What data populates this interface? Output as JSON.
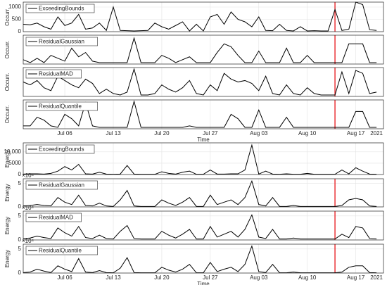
{
  "chart_data": [
    {
      "type": "line",
      "xlabel": "Time",
      "year_label": "2021",
      "color": "#000000",
      "vline_x": "2021-08-14",
      "vline_color": "#e8262a",
      "x": [
        "2021-06-30",
        "2021-07-01",
        "2021-07-02",
        "2021-07-03",
        "2021-07-04",
        "2021-07-05",
        "2021-07-06",
        "2021-07-07",
        "2021-07-08",
        "2021-07-09",
        "2021-07-10",
        "2021-07-11",
        "2021-07-12",
        "2021-07-13",
        "2021-07-14",
        "2021-07-15",
        "2021-07-16",
        "2021-07-17",
        "2021-07-18",
        "2021-07-19",
        "2021-07-20",
        "2021-07-21",
        "2021-07-22",
        "2021-07-23",
        "2021-07-24",
        "2021-07-25",
        "2021-07-26",
        "2021-07-27",
        "2021-07-28",
        "2021-07-29",
        "2021-07-30",
        "2021-07-31",
        "2021-08-01",
        "2021-08-02",
        "2021-08-03",
        "2021-08-04",
        "2021-08-05",
        "2021-08-06",
        "2021-08-07",
        "2021-08-08",
        "2021-08-09",
        "2021-08-10",
        "2021-08-11",
        "2021-08-12",
        "2021-08-13",
        "2021-08-14",
        "2021-08-15",
        "2021-08-16",
        "2021-08-17",
        "2021-08-18",
        "2021-08-19",
        "2021-08-20"
      ],
      "xlim": [
        "2021-06-30",
        "2021-08-21"
      ],
      "xticks": [
        {
          "value": "2021-07-06",
          "label": "Jul 06"
        },
        {
          "value": "2021-07-13",
          "label": "Jul 13"
        },
        {
          "value": "2021-07-20",
          "label": "Jul 20"
        },
        {
          "value": "2021-07-27",
          "label": "Jul 27"
        },
        {
          "value": "2021-08-03",
          "label": "Aug 03"
        },
        {
          "value": "2021-08-10",
          "label": "Aug 10"
        },
        {
          "value": "2021-08-17",
          "label": "Aug 17"
        }
      ],
      "panels": [
        {
          "ylabel": "Occurr.",
          "vline": true,
          "ylim": [
            0,
            1200
          ],
          "yticks": [
            0,
            500,
            1000
          ],
          "series": [
            {
              "name": "ExceedingBounds",
              "values": [
                300,
                280,
                350,
                200,
                100,
                600,
                250,
                350,
                700,
                100,
                150,
                350,
                50,
                1000,
                50,
                40,
                30,
                40,
                50,
                350,
                200,
                100,
                250,
                400,
                30,
                300,
                30,
                600,
                700,
                300,
                800,
                500,
                400,
                200,
                600,
                50,
                40,
                300,
                50,
                30,
                200,
                30,
                40,
                30,
                30,
                900,
                50,
                100,
                1200,
                1100,
                80,
                50
              ]
            }
          ]
        },
        {
          "ylabel": "Occurr.",
          "vline": true,
          "ylim": [
            0,
            100
          ],
          "yticks": [],
          "series": [
            {
              "name": "ResidualGaussian",
              "values": [
                15,
                5,
                20,
                5,
                30,
                20,
                10,
                55,
                25,
                40,
                10,
                5,
                5,
                5,
                5,
                5,
                90,
                5,
                5,
                5,
                30,
                20,
                5,
                15,
                25,
                5,
                5,
                5,
                40,
                70,
                60,
                30,
                5,
                5,
                45,
                5,
                5,
                5,
                55,
                5,
                5,
                30,
                5,
                5,
                5,
                5,
                5,
                70,
                70,
                70,
                5,
                5
              ]
            }
          ]
        },
        {
          "ylabel": "Occurr.",
          "vline": true,
          "ylim": [
            0,
            100
          ],
          "yticks": [],
          "series": [
            {
              "name": "ResidualMAD",
              "values": [
                50,
                40,
                55,
                30,
                20,
                70,
                55,
                40,
                30,
                60,
                45,
                10,
                25,
                10,
                5,
                15,
                95,
                5,
                5,
                10,
                40,
                25,
                15,
                30,
                55,
                10,
                5,
                40,
                20,
                80,
                60,
                50,
                55,
                45,
                20,
                70,
                10,
                5,
                40,
                10,
                5,
                30,
                10,
                5,
                5,
                5,
                85,
                10,
                90,
                80,
                10,
                15
              ]
            }
          ]
        },
        {
          "ylabel": "Occurr.",
          "vline": true,
          "ylim": [
            0,
            100
          ],
          "yticks": [],
          "series": [
            {
              "name": "ResidualQuantile",
              "values": [
                10,
                10,
                40,
                30,
                10,
                5,
                50,
                35,
                10,
                90,
                10,
                5,
                5,
                5,
                5,
                5,
                95,
                5,
                5,
                5,
                5,
                5,
                5,
                5,
                10,
                5,
                5,
                5,
                5,
                5,
                50,
                35,
                5,
                5,
                65,
                5,
                5,
                5,
                40,
                5,
                5,
                5,
                5,
                5,
                5,
                5,
                5,
                5,
                60,
                60,
                5,
                5
              ]
            }
          ]
        }
      ]
    },
    {
      "type": "line",
      "xlabel": "Time",
      "year_label": "2021",
      "color": "#000000",
      "vline_x": "2021-08-14",
      "vline_color": "#e8262a",
      "x": [
        "2021-06-30",
        "2021-07-01",
        "2021-07-02",
        "2021-07-03",
        "2021-07-04",
        "2021-07-05",
        "2021-07-06",
        "2021-07-07",
        "2021-07-08",
        "2021-07-09",
        "2021-07-10",
        "2021-07-11",
        "2021-07-12",
        "2021-07-13",
        "2021-07-14",
        "2021-07-15",
        "2021-07-16",
        "2021-07-17",
        "2021-07-18",
        "2021-07-19",
        "2021-07-20",
        "2021-07-21",
        "2021-07-22",
        "2021-07-23",
        "2021-07-24",
        "2021-07-25",
        "2021-07-26",
        "2021-07-27",
        "2021-07-28",
        "2021-07-29",
        "2021-07-30",
        "2021-07-31",
        "2021-08-01",
        "2021-08-02",
        "2021-08-03",
        "2021-08-04",
        "2021-08-05",
        "2021-08-06",
        "2021-08-07",
        "2021-08-08",
        "2021-08-09",
        "2021-08-10",
        "2021-08-11",
        "2021-08-12",
        "2021-08-13",
        "2021-08-14",
        "2021-08-15",
        "2021-08-16",
        "2021-08-17",
        "2021-08-18",
        "2021-08-19",
        "2021-08-20"
      ],
      "xlim": [
        "2021-06-30",
        "2021-08-21"
      ],
      "xticks": [
        {
          "value": "2021-07-06",
          "label": "Jul 06"
        },
        {
          "value": "2021-07-13",
          "label": "Jul 13"
        },
        {
          "value": "2021-07-20",
          "label": "Jul 20"
        },
        {
          "value": "2021-07-27",
          "label": "Jul 27"
        },
        {
          "value": "2021-08-03",
          "label": "Aug 03"
        },
        {
          "value": "2021-08-10",
          "label": "Aug 10"
        },
        {
          "value": "2021-08-17",
          "label": "Aug 17"
        }
      ],
      "panels": [
        {
          "ylabel": "Energy",
          "vline": false,
          "ylim": [
            0,
            14000
          ],
          "yticks": [
            0,
            5000,
            {
              "value": 10000,
              "label": "10,000"
            }
          ],
          "series": [
            {
              "name": "ExceedingBounds",
              "values": [
                200,
                300,
                300,
                200,
                500,
                1500,
                3500,
                2000,
                4500,
                300,
                200,
                1000,
                200,
                100,
                200,
                4000,
                200,
                100,
                100,
                100,
                1200,
                500,
                200,
                1000,
                1500,
                100,
                100,
                2000,
                200,
                200,
                300,
                300,
                2000,
                13000,
                200,
                1500,
                200,
                100,
                300,
                100,
                100,
                500,
                100,
                100,
                100,
                100,
                2000,
                300,
                3000,
                1500,
                200,
                100
              ]
            }
          ]
        },
        {
          "ylabel": "Energy",
          "vline": true,
          "exponent_label": "×10⁴",
          "ylim": [
            0,
            60000
          ],
          "yticks": [
            0,
            {
              "value": 50000,
              "label": "5"
            }
          ],
          "series": [
            {
              "name": "ResidualGaussian",
              "values": [
                2000,
                3000,
                5000,
                3000,
                2000,
                20000,
                10000,
                5000,
                25000,
                3000,
                2000,
                8000,
                2000,
                1000,
                15000,
                35000,
                2000,
                1000,
                1000,
                1000,
                15000,
                8000,
                3000,
                10000,
                20000,
                1000,
                1000,
                25000,
                5000,
                10000,
                15000,
                5000,
                20000,
                55000,
                5000,
                2000,
                20000,
                1000,
                1000,
                3000,
                1000,
                1000,
                1000,
                1000,
                1000,
                1000,
                3000,
                15000,
                18000,
                15000,
                2000,
                1000
              ]
            }
          ]
        },
        {
          "ylabel": "Energy",
          "vline": true,
          "exponent_label": "×10⁴",
          "ylim": [
            0,
            60000
          ],
          "yticks": [
            0,
            {
              "value": 50000,
              "label": "5"
            }
          ],
          "series": [
            {
              "name": "ResidualMAD",
              "values": [
                3000,
                4000,
                8000,
                5000,
                3000,
                25000,
                15000,
                8000,
                28000,
                5000,
                3000,
                10000,
                3000,
                2000,
                18000,
                30000,
                3000,
                2000,
                2000,
                2000,
                18000,
                10000,
                4000,
                12000,
                22000,
                2000,
                2000,
                28000,
                6000,
                12000,
                18000,
                6000,
                22000,
                52000,
                6000,
                3000,
                22000,
                2000,
                2000,
                4000,
                2000,
                2000,
                2000,
                2000,
                2000,
                2000,
                12000,
                5000,
                28000,
                25000,
                3000,
                2000
              ]
            }
          ]
        },
        {
          "ylabel": "Energy",
          "vline": true,
          "exponent_label": "×10⁴",
          "ylim": [
            0,
            60000
          ],
          "yticks": [
            0,
            {
              "value": 50000,
              "label": "5"
            }
          ],
          "series": [
            {
              "name": "ResidualQuantile",
              "values": [
                1000,
                2000,
                8000,
                4000,
                1000,
                15000,
                8000,
                3000,
                30000,
                2000,
                1000,
                5000,
                1000,
                500,
                10000,
                32000,
                1000,
                500,
                500,
                500,
                12000,
                6000,
                2000,
                8000,
                18000,
                500,
                500,
                22000,
                3000,
                8000,
                12000,
                3000,
                18000,
                56000,
                3000,
                1000,
                18000,
                500,
                500,
                2000,
                500,
                500,
                500,
                500,
                500,
                500,
                2000,
                12000,
                15000,
                15000,
                1000,
                500
              ]
            }
          ]
        }
      ]
    }
  ]
}
